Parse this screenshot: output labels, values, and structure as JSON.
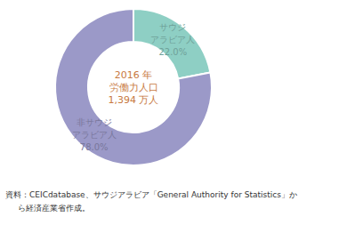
{
  "chart_data": {
    "type": "donut",
    "values": [
      22.0,
      78.0
    ],
    "value_labels": [
      "サウジ\nアラビア人\n22.0%",
      "非サウジ\nアラビア人\n78.0%"
    ],
    "colors": [
      "#8ecfc4",
      "#9b99c8"
    ],
    "data_labels": true,
    "annotations": [
      {
        "text": "2016 年",
        "color": "#c87941"
      },
      {
        "text": "労働力人口",
        "color": "#c87941"
      },
      {
        "text": "1,394 万人",
        "color": "#c87941"
      }
    ],
    "source": [
      "資料：CEICdatabase、サウジアラビア「General Authority for Statistics」か",
      "ら経済産業省作成。"
    ]
  }
}
